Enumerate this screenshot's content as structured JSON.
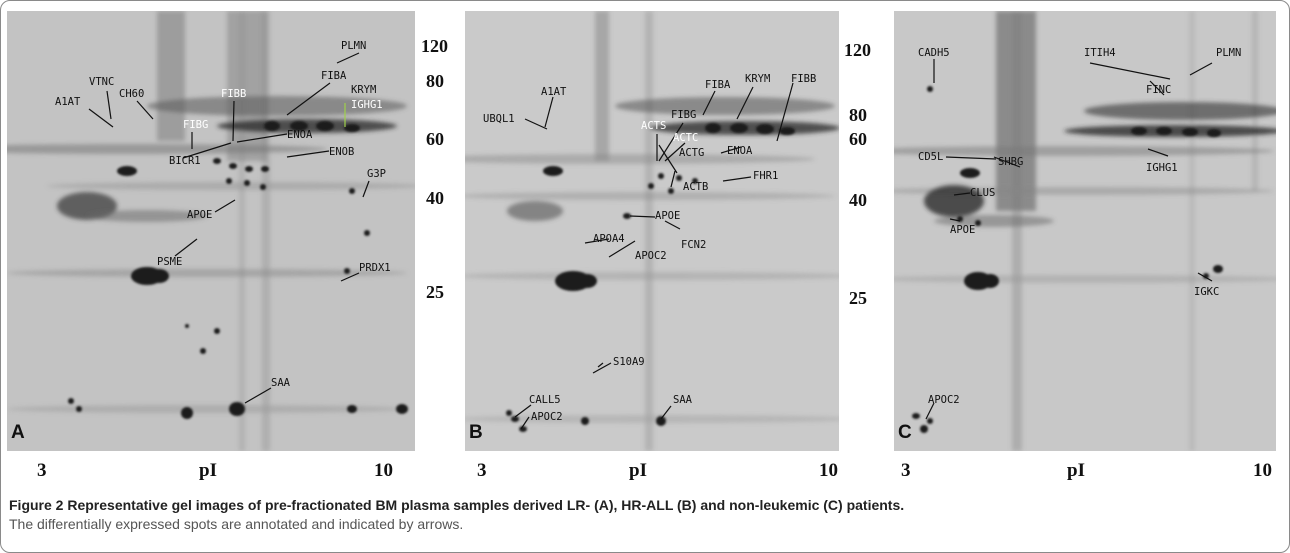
{
  "panels": [
    {
      "letter": "A",
      "axis": {
        "left": "3",
        "label": "pI",
        "right": "10"
      },
      "mw": [
        "120",
        "80",
        "60",
        "40",
        "25"
      ],
      "labels": {
        "plmn": "PLMN",
        "vtnc": "VTNC",
        "a1at": "A1AT",
        "ch60": "CH60",
        "fibb": "FIBB",
        "fiba": "FIBA",
        "krym": "KRYM",
        "ighg1": "IGHG1",
        "fibg": "FIBG",
        "enoa": "ENOA",
        "bicr1": "BICR1",
        "enob": "ENOB",
        "g3p": "G3P",
        "apoe": "APOE",
        "psme": "PSME",
        "prdx1": "PRDX1",
        "saa": "SAA"
      }
    },
    {
      "letter": "B",
      "axis": {
        "left": "3",
        "label": "pI",
        "right": "10"
      },
      "labels": {
        "a1at": "A1AT",
        "ubql1": "UBQL1",
        "fiba": "FIBA",
        "krym": "KRYM",
        "fibb": "FIBB",
        "fibg": "FIBG",
        "acts": "ACTS",
        "actc": "ACTC",
        "actg": "ACTG",
        "enoa": "ENOA",
        "fhr1": "FHR1",
        "actb": "ACTB",
        "apoe": "APOE",
        "apoa4": "APOA4",
        "fcn2": "FCN2",
        "apoc2": "APOC2",
        "s10a9": "S10A9",
        "call5": "CALL5",
        "apoc2b": "APOC2",
        "saa": "SAA"
      }
    },
    {
      "letter": "C",
      "axis": {
        "left": "3",
        "label": "pI",
        "right": "10"
      },
      "mw": [
        "120",
        "80",
        "60",
        "40",
        "25"
      ],
      "labels": {
        "cadh5": "CADH5",
        "itih4": "ITIH4",
        "plmn": "PLMN",
        "finc": "FINC",
        "cd5l": "CD5L",
        "shbg": "SHBG",
        "ighg1": "IGHG1",
        "clus": "CLUS",
        "apoe": "APOE",
        "igkc": "IGKC",
        "apoc2": "APOC2"
      }
    }
  ],
  "caption": {
    "figure": "Figure 2",
    "title": "Representative gel images of pre-fractionated BM plasma samples derived LR- (A), HR-ALL (B) and non-leukemic (C) patients.",
    "subtitle": "The differentially expressed spots are annotated and indicated by arrows."
  }
}
